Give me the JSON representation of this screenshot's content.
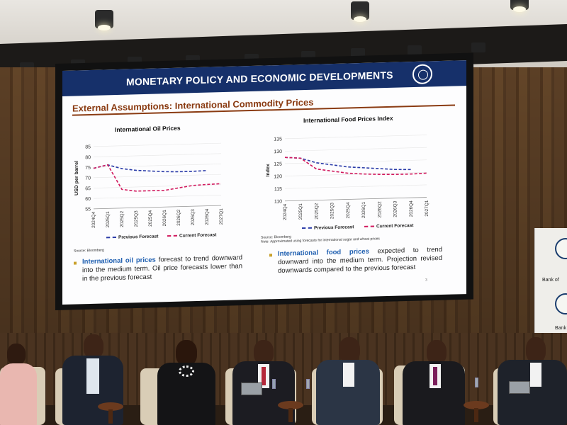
{
  "slide": {
    "header_title": "MONETARY POLICY AND ECONOMIC DEVELOPMENTS",
    "subtitle": "External Assumptions: International Commodity Prices",
    "page_number": "3",
    "bullets": [
      {
        "highlight": "International oil prices",
        "text": " forecast to trend downward into the medium term. Oil price forecasts lower than in the previous forecast"
      },
      {
        "highlight": "International food prices",
        "text": " expected to trend downward into the medium term. Projection revised downwards compared to the previous forecast"
      }
    ]
  },
  "banner": {
    "line1": "Bank of",
    "line2": "Bank"
  },
  "colors": {
    "header": "#16306a",
    "previous": "#2a3ba8",
    "current": "#d11a5e",
    "subtitle": "#8a3b12",
    "highlight": "#1f5fb0"
  },
  "chart_data": [
    {
      "type": "line",
      "title": "International Oil Prices",
      "ylabel": "USD per barrel",
      "xlabel": "",
      "ylim": [
        55,
        85
      ],
      "yticks": [
        55,
        60,
        65,
        70,
        75,
        80,
        85
      ],
      "categories": [
        "2024Q4",
        "2025Q1",
        "2025Q2",
        "2025Q3",
        "2025Q4",
        "2026Q1",
        "2026Q2",
        "2026Q3",
        "2026Q4",
        "2027Q1"
      ],
      "series": [
        {
          "name": "Previous Forecast",
          "values": [
            74.5,
            76.0,
            74.0,
            73.0,
            72.5,
            72.0,
            71.8,
            71.8,
            72.0,
            null
          ]
        },
        {
          "name": "Current Forecast",
          "values": [
            74.5,
            76.0,
            64.0,
            63.0,
            63.0,
            63.0,
            64.0,
            65.0,
            65.3,
            65.5
          ]
        }
      ],
      "legend": "bottom",
      "source": "Source: Bloomberg"
    },
    {
      "type": "line",
      "title": "International Food Prices Index",
      "ylabel": "Index",
      "xlabel": "",
      "ylim": [
        110,
        135
      ],
      "yticks": [
        110,
        115,
        120,
        125,
        130,
        135
      ],
      "categories": [
        "2024Q4",
        "2025Q1",
        "2025Q2",
        "2025Q3",
        "2025Q4",
        "2026Q1",
        "2026Q2",
        "2026Q3",
        "2026Q4",
        "2027Q1"
      ],
      "series": [
        {
          "name": "Previous Forecast",
          "values": [
            127.5,
            127.0,
            125.0,
            124.0,
            123.0,
            122.5,
            122.0,
            121.5,
            121.3,
            null
          ]
        },
        {
          "name": "Current Forecast",
          "values": [
            127.5,
            127.0,
            122.5,
            121.5,
            120.5,
            120.0,
            119.7,
            119.5,
            119.5,
            119.7
          ]
        }
      ],
      "legend": "bottom",
      "source": "Source: Bloomberg",
      "note": "Note: Approximated using forecasts for international sugar and wheat prices"
    }
  ]
}
